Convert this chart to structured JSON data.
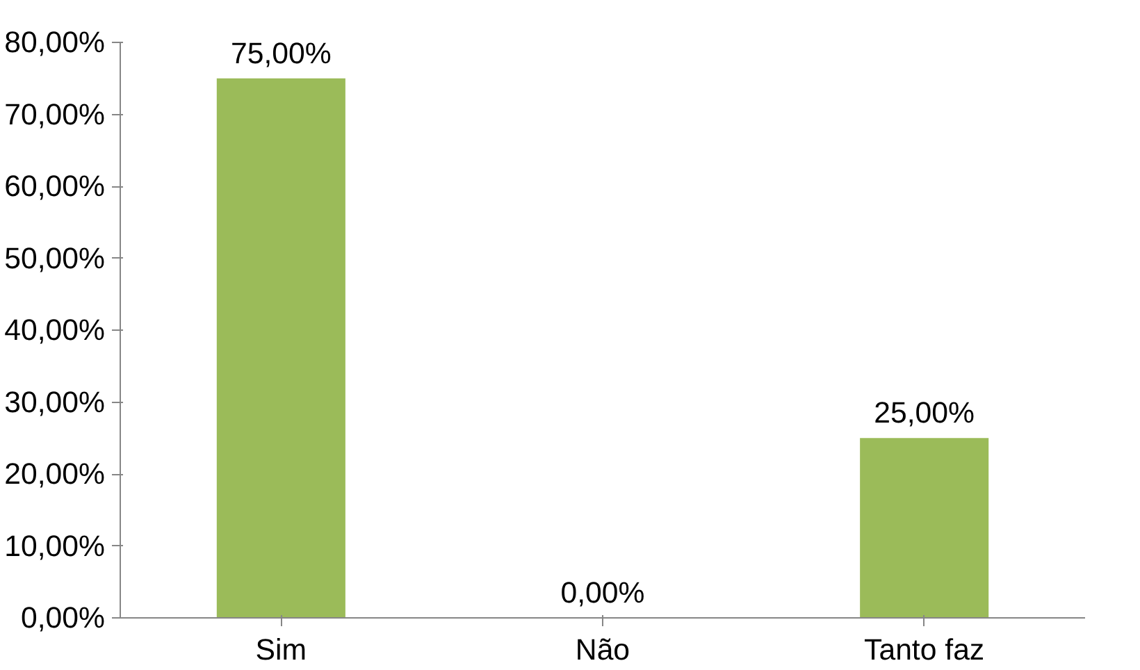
{
  "chart_data": {
    "type": "bar",
    "categories": [
      "Sim",
      "Não",
      "Tanto faz"
    ],
    "values": [
      75,
      0,
      25
    ],
    "color": "#9bbb59",
    "value_labels": [
      "75,00%",
      "0,00%",
      "25,00%"
    ],
    "ylim": [
      0,
      80
    ],
    "yticks": [
      {
        "value": 0,
        "label": "0,00%"
      },
      {
        "value": 10,
        "label": "10,00%"
      },
      {
        "value": 20,
        "label": "20,00%"
      },
      {
        "value": 30,
        "label": "30,00%"
      },
      {
        "value": 40,
        "label": "40,00%"
      },
      {
        "value": 50,
        "label": "50,00%"
      },
      {
        "value": 60,
        "label": "60,00%"
      },
      {
        "value": 70,
        "label": "70,00%"
      },
      {
        "value": 80,
        "label": "80,00%"
      }
    ],
    "grid": false
  }
}
